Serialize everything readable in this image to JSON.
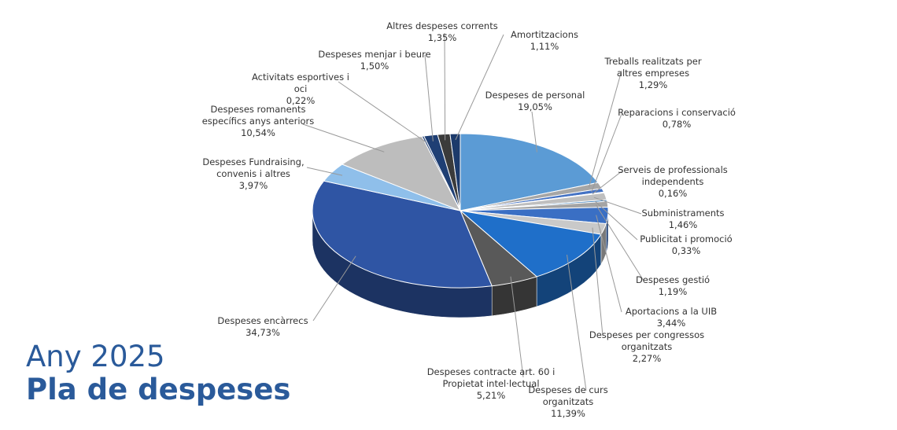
{
  "chart_data": {
    "type": "pie",
    "subtitle": "Any 2025",
    "title": "Pla de despeses",
    "labels": [
      "Despeses de personal",
      "Treballs realitzats per altres empreses",
      "Reparacions i conservació",
      "Serveis de professionals independents",
      "Subministraments",
      "Publicitat i promoció",
      "Despeses gestió",
      "Aportacions a la UIB",
      "Despeses per congressos organitzats",
      "Despeses de curs organitzats",
      "Despeses contracte art. 60 i Propietat intel·lectual",
      "Despeses encàrrecs",
      "Despeses Fundraising, convenis i altres",
      "Despeses romanents específics anys anteriors",
      "Activitats esportives i oci",
      "Despeses menjar i beure",
      "Altres despeses corrents",
      "Amortitzacions"
    ],
    "values": [
      19.05,
      1.29,
      0.78,
      0.16,
      1.46,
      0.33,
      1.19,
      3.44,
      2.27,
      11.39,
      5.21,
      34.73,
      3.97,
      10.54,
      0.22,
      1.5,
      1.35,
      1.11
    ],
    "value_labels": [
      "19,05%",
      "1,29%",
      "0,78%",
      "0,16%",
      "1,46%",
      "0,33%",
      "1,19%",
      "3,44%",
      "2,27%",
      "11,39%",
      "5,21%",
      "34,73%",
      "3,97%",
      "10,54%",
      "0,22%",
      "1,50%",
      "1,35%",
      "1,11%"
    ],
    "colors": [
      "#5b9bd5",
      "#a6a6a6",
      "#4472c4",
      "#7f7f7f",
      "#bfbfbf",
      "#2e75b6",
      "#a5a5a5",
      "#3a6fc4",
      "#c9c9c9",
      "#1f6fc9",
      "#595959",
      "#2f55a4",
      "#8fbfea",
      "#bdbdbd",
      "#264478",
      "#1f3f74",
      "#3b3b3b",
      "#1c3a6b"
    ]
  }
}
